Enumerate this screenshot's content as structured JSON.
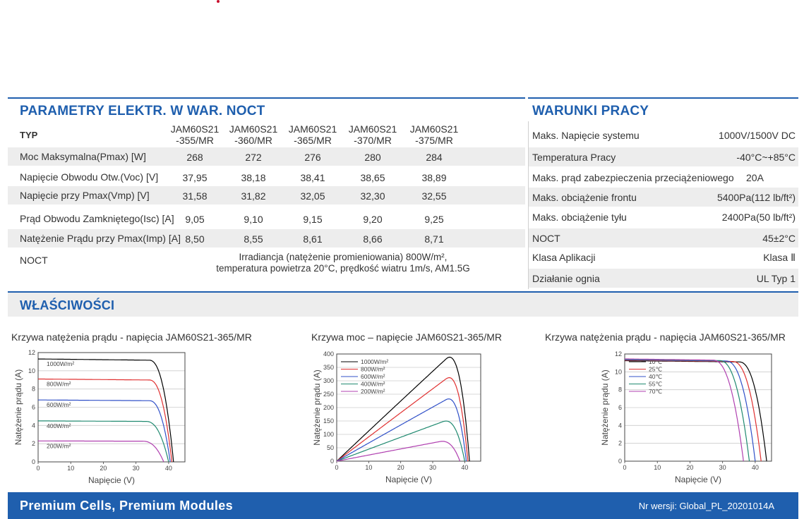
{
  "electrical": {
    "title": "PARAMETRY ELEKTR. W WAR. NOCT",
    "typ_label": "TYP",
    "models": [
      [
        "JAM60S21",
        "-355/MR"
      ],
      [
        "JAM60S21",
        "-360/MR"
      ],
      [
        "JAM60S21",
        "-365/MR"
      ],
      [
        "JAM60S21",
        "-370/MR"
      ],
      [
        "JAM60S21",
        "-375/MR"
      ]
    ],
    "rows": [
      {
        "label": "Moc Maksymalna(Pmax) [W]",
        "values": [
          "268",
          "272",
          "276",
          "280",
          "284"
        ]
      },
      {
        "label": "Napięcie Obwodu Otw.(Voc) [V]",
        "values": [
          "37,95",
          "38,18",
          "38,41",
          "38,65",
          "38,89"
        ]
      },
      {
        "label": "Napięcie przy Pmax(Vmp) [V]",
        "values": [
          "31,58",
          "31,82",
          "32,05",
          "32,30",
          "32,55"
        ]
      },
      {
        "label": "Prąd Obwodu Zamkniętego(Isc) [A]",
        "values": [
          "9,05",
          "9,10",
          "9,15",
          "9,20",
          "9,25"
        ]
      },
      {
        "label": "Natężenie Prądu przy Pmax(Imp) [A]",
        "values": [
          "8,50",
          "8,55",
          "8,61",
          "8,66",
          "8,71"
        ]
      }
    ],
    "noct_label": "NOCT",
    "noct_line1": "Irradiancja (natężenie promieniowania) 800W/m²,",
    "noct_line2": "temperatura powietrza 20°C, prędkość wiatru 1m/s, AM1.5G"
  },
  "operating": {
    "title": "WARUNKI PRACY",
    "rows": [
      {
        "label": "Maks. Napięcie systemu",
        "value": "1000V/1500V DC"
      },
      {
        "label": "Temperatura Pracy",
        "value": "-40°C~+85°C"
      },
      {
        "label": "Maks. prąd zabezpieczenia przeciążeniowego",
        "value": "20A"
      },
      {
        "label": "Maks. obciążenie frontu",
        "value": "5400Pa(112 lb/ft²)"
      },
      {
        "label": "Maks. obciążenie tyłu",
        "value": "2400Pa(50 lb/ft²)"
      },
      {
        "label": "NOCT",
        "value": "45±2°C"
      },
      {
        "label": "Klasa Aplikacji",
        "value": "Klasa Ⅱ"
      },
      {
        "label": "Działanie ognia",
        "value": "UL Typ 1"
      }
    ]
  },
  "properties": {
    "title": "WŁAŚCIWOŚCI"
  },
  "chart_titles": [
    "Krzywa natężenia prądu - napięcia  JAM60S21-365/MR",
    "Krzywa moc – napięcie   JAM60S21-365/MR",
    "Krzywa natężenia prądu - napięcia   JAM60S21-365/MR"
  ],
  "chart_data": [
    {
      "type": "line",
      "title": "Krzywa natężenia prądu - napięcia  JAM60S21-365/MR",
      "xlabel": "Napięcie (V)",
      "ylabel": "Natężenie prądu (A)",
      "xlim": [
        0,
        45
      ],
      "ylim": [
        0,
        12
      ],
      "xticks": [
        0,
        10,
        20,
        30,
        40
      ],
      "yticks": [
        0,
        2,
        4,
        6,
        8,
        10,
        12
      ],
      "grid": true,
      "legend": "inline-left",
      "series": [
        {
          "name": "1000W/m²",
          "color": "#000000",
          "isc": 11.3,
          "voc": 41.5,
          "vknee": 34
        },
        {
          "name": "800W/m²",
          "color": "#e03030",
          "isc": 9.1,
          "voc": 41.0,
          "vknee": 34
        },
        {
          "name": "600W/m²",
          "color": "#3050c8",
          "isc": 6.8,
          "voc": 40.5,
          "vknee": 34
        },
        {
          "name": "400W/m²",
          "color": "#208a70",
          "isc": 4.5,
          "voc": 40.0,
          "vknee": 33
        },
        {
          "name": "200W/m²",
          "color": "#b040b0",
          "isc": 2.3,
          "voc": 38.5,
          "vknee": 32
        }
      ]
    },
    {
      "type": "line",
      "title": "Krzywa moc – napięcie   JAM60S21-365/MR",
      "xlabel": "Napięcie (V)",
      "ylabel": "Natężenie prądu (A)",
      "xlim": [
        0,
        45
      ],
      "ylim": [
        0,
        400
      ],
      "xticks": [
        0,
        10,
        20,
        30,
        40
      ],
      "yticks": [
        0,
        50,
        100,
        150,
        200,
        250,
        300,
        350,
        400
      ],
      "grid": true,
      "legend": "top-left",
      "series": [
        {
          "name": "1000W/m²",
          "color": "#000000",
          "isc": 11.3,
          "voc": 41.5,
          "vknee": 34
        },
        {
          "name": "800W/m²",
          "color": "#e03030",
          "isc": 9.1,
          "voc": 41.0,
          "vknee": 34
        },
        {
          "name": "600W/m²",
          "color": "#3050c8",
          "isc": 6.8,
          "voc": 40.5,
          "vknee": 34
        },
        {
          "name": "400W/m²",
          "color": "#208a70",
          "isc": 4.5,
          "voc": 40.0,
          "vknee": 33
        },
        {
          "name": "200W/m²",
          "color": "#b040b0",
          "isc": 2.3,
          "voc": 38.5,
          "vknee": 32
        }
      ]
    },
    {
      "type": "line",
      "title": "Krzywa natężenia prądu - napięcia   JAM60S21-365/MR",
      "xlabel": "Napięcie (V)",
      "ylabel": "Natężenie prądu (A)",
      "xlim": [
        0,
        45
      ],
      "ylim": [
        0,
        12
      ],
      "xticks": [
        0,
        10,
        20,
        30,
        40
      ],
      "yticks": [
        0,
        2,
        4,
        6,
        8,
        10,
        12
      ],
      "grid": true,
      "legend": "top-left",
      "series": [
        {
          "name": "10℃",
          "color": "#000000",
          "isc": 11.25,
          "voc": 43.5,
          "vknee": 35
        },
        {
          "name": "25℃",
          "color": "#e03030",
          "isc": 11.3,
          "voc": 41.8,
          "vknee": 33
        },
        {
          "name": "40℃",
          "color": "#3050c8",
          "isc": 11.35,
          "voc": 40.0,
          "vknee": 31
        },
        {
          "name": "55℃",
          "color": "#208a70",
          "isc": 11.4,
          "voc": 38.2,
          "vknee": 29
        },
        {
          "name": "70℃",
          "color": "#b040b0",
          "isc": 11.45,
          "voc": 36.4,
          "vknee": 27
        }
      ]
    }
  ],
  "footer": {
    "left": "Premium Cells, Premium Modules",
    "right": "Nr wersji: Global_PL_20201014A"
  }
}
